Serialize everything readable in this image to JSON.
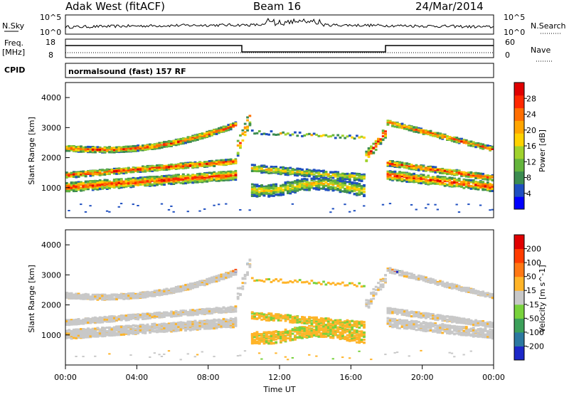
{
  "header": {
    "station": "Adak West (fitACF)",
    "beam": "Beam 16",
    "date": "24/Mar/2014"
  },
  "noise_panel": {
    "left_label": "N.Sky",
    "right_label": "N.Search",
    "left_ticks": [
      "10^5",
      "10^0"
    ],
    "right_ticks": [
      "10^5",
      "10^0"
    ]
  },
  "freq_panel": {
    "left_label_1": "Freq.",
    "left_label_2": "[MHz]",
    "right_label": "Nave",
    "left_ticks": [
      "18",
      "8"
    ],
    "right_ticks": [
      "60",
      "0"
    ]
  },
  "cpid": {
    "label": "CPID",
    "program": "normalsound (fast) 157 RF"
  },
  "chart_data": [
    {
      "type": "heatmap",
      "title": "",
      "xlabel": "",
      "ylabel": "Slant Range [km]",
      "yticks": [
        "1000",
        "2000",
        "3000",
        "4000"
      ],
      "ylim": [
        0,
        4500
      ],
      "colorbar": {
        "label": "Power [dB]",
        "ticks": [
          "4",
          "8",
          "12",
          "16",
          "20",
          "24",
          "28"
        ],
        "colors": [
          "#0000ff",
          "#1f4fc0",
          "#3c8c50",
          "#64b43c",
          "#a0d22d",
          "#ffd200",
          "#ffa500",
          "#ff6e00",
          "#ff2800",
          "#e00000"
        ]
      }
    },
    {
      "type": "heatmap",
      "title": "",
      "xlabel": "Time UT",
      "ylabel": "Slant Range [km]",
      "yticks": [
        "1000",
        "2000",
        "3000",
        "4000"
      ],
      "ylim": [
        0,
        4500
      ],
      "colorbar": {
        "label": "Velocity [m s^-1]",
        "ticks": [
          "200",
          "100",
          "50",
          "15",
          "-15",
          "-50",
          "-100",
          "-200"
        ],
        "colors": [
          "#1c28c8",
          "#2c78a0",
          "#3ca05a",
          "#78d23c",
          "#c8c8c8",
          "#ffb428",
          "#ff7814",
          "#ff3c00",
          "#e00000"
        ]
      }
    }
  ],
  "time_axis": {
    "label": "Time UT",
    "ticks": [
      "00:00",
      "04:00",
      "08:00",
      "12:00",
      "16:00",
      "20:00",
      "00:00"
    ]
  }
}
